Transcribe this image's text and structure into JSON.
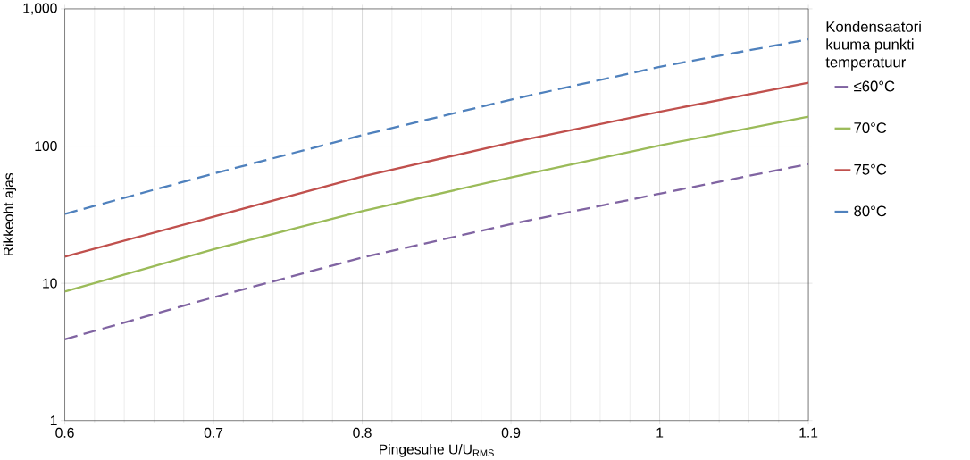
{
  "chart_data": {
    "type": "line",
    "xlabel": "Pingesuhe U/U$_{RMS}$",
    "ylabel": "Rikkeoht ajas",
    "legend_title": "Kondensaatori kuuma punkti temperatuur",
    "log": "y",
    "grid": true,
    "legend": "right",
    "marker": "none",
    "x": [
      0.6,
      0.7,
      0.8,
      0.9,
      1.0,
      1.1
    ],
    "xlim": [
      0.6,
      1.1
    ],
    "xticks": [
      0.6,
      0.7,
      0.8,
      0.9,
      1,
      1.1
    ],
    "ylim": [
      1,
      1000
    ],
    "yticks": [
      1,
      10,
      100,
      {
        "value": 1000,
        "label": "1,000"
      }
    ],
    "series": [
      {
        "name": "≤60°C",
        "color": "#8064a2",
        "line_style": "dashed",
        "values": [
          3.9,
          7.9,
          15.4,
          27,
          45,
          74
        ]
      },
      {
        "name": "70°C",
        "color": "#9bbb59",
        "line_style": "solid",
        "values": [
          8.7,
          17.7,
          33.6,
          59,
          101,
          164
        ]
      },
      {
        "name": "75°C",
        "color": "#c0504d",
        "line_style": "solid",
        "values": [
          15.6,
          30.6,
          60,
          106,
          178,
          289
        ]
      },
      {
        "name": "80°C",
        "color": "#4f81bd",
        "line_style": "dashed",
        "values": [
          32,
          63,
          120,
          218,
          378,
          600
        ]
      }
    ]
  }
}
